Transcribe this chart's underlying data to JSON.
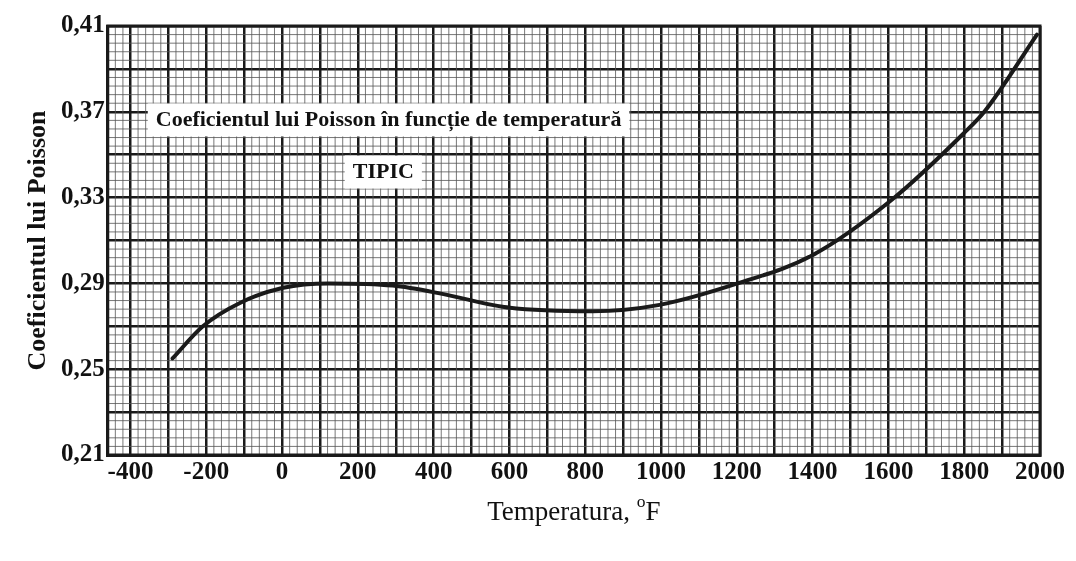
{
  "chart_data": {
    "type": "line",
    "xlabel": "Temperatura, $^{o}$F",
    "ylabel": "Coeficientul lui Poisson",
    "annotations": [
      "Coeficientul lui Poisson în funcție de temperatură",
      "TIPIC"
    ],
    "series": [
      {
        "color": "#1a1a1a",
        "x": [
          -289,
          -209,
          -110,
          3,
          123,
          292,
          426,
          586,
          819,
          996,
          1202,
          1398,
          1609,
          1799,
          1853,
          1992
        ],
        "values": [
          0.255,
          0.27,
          0.281,
          0.288,
          0.29,
          0.289,
          0.285,
          0.279,
          0.277,
          0.28,
          0.29,
          0.303,
          0.329,
          0.36,
          0.37,
          0.406
        ]
      }
    ],
    "xlim": [
      -460,
      2000
    ],
    "ylim": [
      0.21,
      0.41
    ],
    "xticks": [
      -400,
      {
        "value": -300,
        "label": null
      },
      -200,
      {
        "value": -100,
        "label": null
      },
      0,
      {
        "value": 100,
        "label": null
      },
      200,
      {
        "value": 300,
        "label": null
      },
      400,
      {
        "value": 500,
        "label": null
      },
      600,
      {
        "value": 700,
        "label": null
      },
      800,
      {
        "value": 900,
        "label": null
      },
      1000,
      {
        "value": 1100,
        "label": null
      },
      1200,
      {
        "value": 1300,
        "label": null
      },
      1400,
      {
        "value": 1500,
        "label": null
      },
      1600,
      {
        "value": 1700,
        "label": null
      },
      1800,
      {
        "value": 1900,
        "label": null
      },
      2000
    ],
    "yticks": [
      {
        "value": 0.21,
        "label": "0,21"
      },
      {
        "value": 0.23,
        "label": null
      },
      {
        "value": 0.25,
        "label": "0,25"
      },
      {
        "value": 0.27,
        "label": null
      },
      {
        "value": 0.29,
        "label": "0,29"
      },
      {
        "value": 0.31,
        "label": null
      },
      {
        "value": 0.33,
        "label": "0,33"
      },
      {
        "value": 0.35,
        "label": null
      },
      {
        "value": 0.37,
        "label": "0,37"
      },
      {
        "value": 0.39,
        "label": null
      },
      {
        "value": 0.41,
        "label": "0,41"
      }
    ],
    "grid": true,
    "legend": false,
    "marker": "none",
    "line_style": "solid"
  }
}
